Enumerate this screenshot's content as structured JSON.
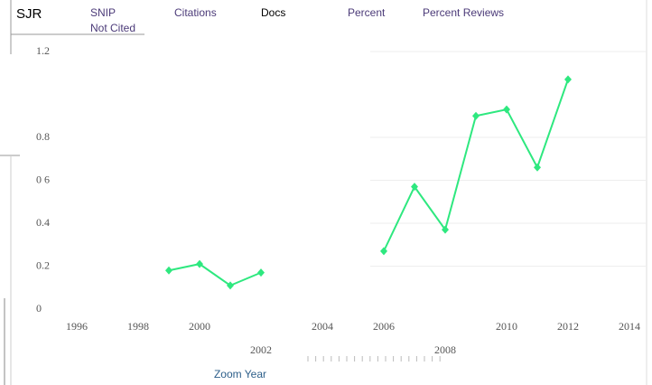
{
  "tabs": [
    "SJR",
    "SNIP",
    "Citations",
    "Docs",
    "Percent",
    "Percent Reviews",
    "Not Cited"
  ],
  "zoom_label": "Zoom Year",
  "chart_data": {
    "type": "line",
    "x": [
      1999,
      2000,
      2001,
      2002,
      2003,
      2004,
      2005,
      2006,
      2007,
      2008,
      2009,
      2010,
      2011,
      2012
    ],
    "series": [
      {
        "name": "SJR",
        "color": "#2ee87f",
        "values": [
          0.18,
          0.21,
          0.11,
          0.17,
          null,
          null,
          null,
          0.27,
          0.57,
          0.37,
          0.9,
          0.93,
          0.66,
          1.07
        ]
      }
    ],
    "xlim": [
      1996,
      2014
    ],
    "xticks": [
      1996,
      1998,
      2000,
      2002,
      2004,
      2006,
      2008,
      2010,
      2012,
      2014
    ],
    "ylim": [
      0,
      1.2
    ],
    "yticks": [
      0,
      0.2,
      0.4,
      {
        "value": 0.6,
        "label": "0 6"
      },
      0.8,
      1.2
    ],
    "grid": true
  }
}
